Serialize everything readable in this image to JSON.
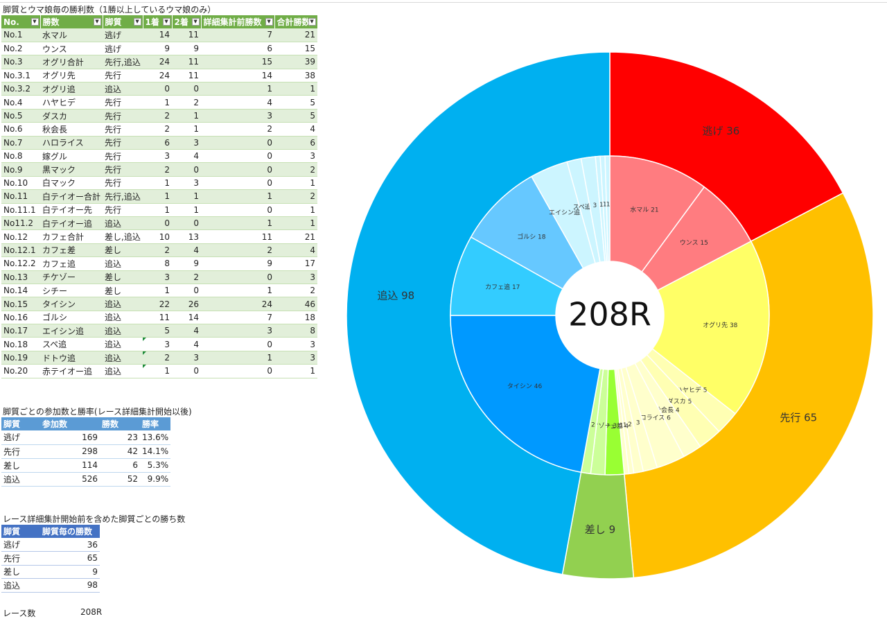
{
  "main_table": {
    "caption": "脚質とウマ娘毎の勝利数（1勝以上しているウマ娘のみ）",
    "headers": [
      "No.",
      "勝数",
      "脚質",
      "1着",
      "2着",
      "詳細集計前勝数",
      "合計勝数"
    ],
    "rows": [
      [
        "No.1",
        "水マル",
        "逃げ",
        "14",
        "11",
        "7",
        "21"
      ],
      [
        "No.2",
        "ウンス",
        "逃げ",
        "9",
        "9",
        "6",
        "15"
      ],
      [
        "No.3",
        "オグリ合計",
        "先行,追込",
        "24",
        "11",
        "15",
        "39"
      ],
      [
        "No.3.1",
        "オグリ先",
        "先行",
        "24",
        "11",
        "14",
        "38"
      ],
      [
        "No.3.2",
        "オグリ追",
        "追込",
        "0",
        "0",
        "1",
        "1"
      ],
      [
        "No.4",
        "ハヤヒデ",
        "先行",
        "1",
        "2",
        "4",
        "5"
      ],
      [
        "No.5",
        "ダスカ",
        "先行",
        "2",
        "1",
        "3",
        "5"
      ],
      [
        "No.6",
        "秋会長",
        "先行",
        "2",
        "1",
        "2",
        "4"
      ],
      [
        "No.7",
        "ハロライス",
        "先行",
        "6",
        "3",
        "0",
        "6"
      ],
      [
        "No.8",
        "嫁グル",
        "先行",
        "3",
        "4",
        "0",
        "3"
      ],
      [
        "No.9",
        "黒マック",
        "先行",
        "2",
        "0",
        "0",
        "2"
      ],
      [
        "No.10",
        "白マック",
        "先行",
        "1",
        "3",
        "0",
        "1"
      ],
      [
        "No.11",
        "白テイオー合計",
        "先行,追込",
        "1",
        "1",
        "1",
        "2"
      ],
      [
        "No.11.1",
        "白テイオー先",
        "先行",
        "1",
        "1",
        "0",
        "1"
      ],
      [
        "No11.2",
        "白テイオー追",
        "追込",
        "0",
        "0",
        "1",
        "1"
      ],
      [
        "No.12",
        "カフェ合計",
        "差し,追込",
        "10",
        "13",
        "11",
        "21"
      ],
      [
        "No.12.1",
        "カフェ差",
        "差し",
        "2",
        "4",
        "2",
        "4"
      ],
      [
        "No.12.2",
        "カフェ追",
        "追込",
        "8",
        "9",
        "9",
        "17"
      ],
      [
        "No.13",
        "チケゾー",
        "差し",
        "3",
        "2",
        "0",
        "3"
      ],
      [
        "No.14",
        "シチー",
        "差し",
        "1",
        "0",
        "1",
        "2"
      ],
      [
        "No.15",
        "タイシン",
        "追込",
        "22",
        "26",
        "24",
        "46"
      ],
      [
        "No.16",
        "ゴルシ",
        "追込",
        "11",
        "14",
        "7",
        "18"
      ],
      [
        "No.17",
        "エイシン追",
        "追込",
        "5",
        "4",
        "3",
        "8"
      ],
      [
        "No.18",
        "スペ追",
        "追込",
        "3",
        "4",
        "0",
        "3"
      ],
      [
        "No.19",
        "ドトウ追",
        "追込",
        "2",
        "3",
        "1",
        "3"
      ],
      [
        "No.20",
        "赤テイオー追",
        "追込",
        "1",
        "0",
        "0",
        "1"
      ]
    ]
  },
  "rate_table": {
    "caption": "脚質ごとの参加数と勝率(レース詳細集計開始以後)",
    "headers": [
      "脚質",
      "参加数",
      "勝数",
      "勝率"
    ],
    "rows": [
      [
        "逃げ",
        "169",
        "23",
        "13.6%"
      ],
      [
        "先行",
        "298",
        "42",
        "14.1%"
      ],
      [
        "差し",
        "114",
        "6",
        "5.3%"
      ],
      [
        "追込",
        "526",
        "52",
        "9.9%"
      ]
    ]
  },
  "wins_table": {
    "caption": "レース詳細集計開始前を含めた脚質ごとの勝ち数",
    "headers": [
      "脚質",
      "脚質毎の勝数"
    ],
    "rows": [
      [
        "逃げ",
        "36"
      ],
      [
        "先行",
        "65"
      ],
      [
        "差し",
        "9"
      ],
      [
        "追込",
        "98"
      ]
    ]
  },
  "race_count": {
    "label": "レース数",
    "value": "208R"
  },
  "chart_data": {
    "type": "sunburst",
    "center_label": "208R",
    "outer": [
      {
        "label": "逃げ 36",
        "value": 36,
        "color": "#ff0000"
      },
      {
        "label": "先行 65",
        "value": 65,
        "color": "#ffc000"
      },
      {
        "label": "差し 9",
        "value": 9,
        "color": "#92d050"
      },
      {
        "label": "追込 98",
        "value": 98,
        "color": "#00b0f0"
      }
    ],
    "inner": [
      {
        "label": "水マル 21",
        "value": 21,
        "color": "#ff7c80"
      },
      {
        "label": "ウンス 15",
        "value": 15,
        "color": "#ff7c80"
      },
      {
        "label": "オグリ先 38",
        "value": 38,
        "color": "#ffff66"
      },
      {
        "label": "ハヤヒデ 5",
        "value": 5,
        "color": "#ffffb3"
      },
      {
        "label": "ダスカ 5",
        "value": 5,
        "color": "#ffffb3"
      },
      {
        "label": "秋会長 4",
        "value": 4,
        "color": "#ffffcc"
      },
      {
        "label": "ハロライス 6",
        "value": 6,
        "color": "#ffffcc"
      },
      {
        "label": "3",
        "value": 3,
        "color": "#ffffcc"
      },
      {
        "label": "2",
        "value": 2,
        "color": "#ffffcc"
      },
      {
        "label": "1",
        "value": 1,
        "color": "#ffffcc"
      },
      {
        "label": "1",
        "value": 1,
        "color": "#ffffcc"
      },
      {
        "label": "カフェ差 4",
        "value": 4,
        "color": "#99ff33"
      },
      {
        "label": "チケゾー 3",
        "value": 3,
        "color": "#ccff99"
      },
      {
        "label": "2",
        "value": 2,
        "color": "#ccff99"
      },
      {
        "label": "タイシン 46",
        "value": 46,
        "color": "#0099ff"
      },
      {
        "label": "カフェ追 17",
        "value": 17,
        "color": "#33ccff"
      },
      {
        "label": "ゴルシ 18",
        "value": 18,
        "color": "#66c8ff"
      },
      {
        "label": "エイシン追 8",
        "value": 8,
        "color": "#ccf5ff"
      },
      {
        "label": "スペ追 3",
        "value": 3,
        "color": "#ccf5ff"
      },
      {
        "label": "3",
        "value": 3,
        "color": "#ccf5ff"
      },
      {
        "label": "1",
        "value": 1,
        "color": "#ccf5ff"
      },
      {
        "label": "1",
        "value": 1,
        "color": "#ccf5ff"
      },
      {
        "label": "1",
        "value": 1,
        "color": "#ccf5ff"
      }
    ]
  }
}
